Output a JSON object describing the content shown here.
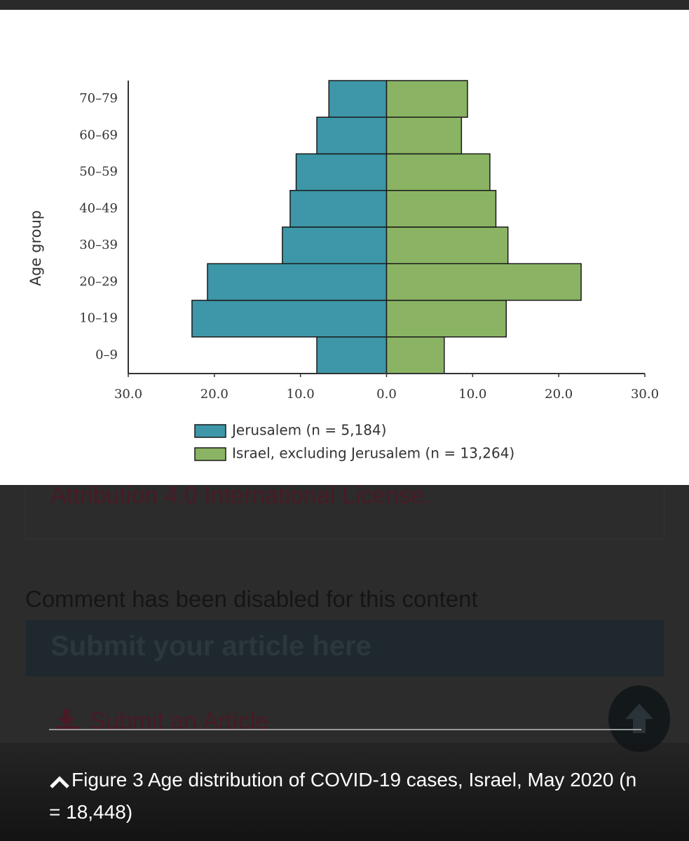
{
  "chart_data": {
    "type": "pyramid",
    "ylabel": "Age group",
    "categories": [
      "0–9",
      "10–19",
      "20–29",
      "30–39",
      "40–49",
      "50–59",
      "60–69",
      "70–79"
    ],
    "series": [
      {
        "name": "Jerusalem (n = 5,184)",
        "color": "#3d97a8",
        "values": [
          -8.1,
          -22.6,
          -20.8,
          -12.1,
          -11.2,
          -10.5,
          -8.1,
          -6.7
        ]
      },
      {
        "name": "Israel, excluding Jerusalem (n = 13,264)",
        "color": "#8ab463",
        "values": [
          6.7,
          13.9,
          22.6,
          14.1,
          12.7,
          12.0,
          8.7,
          9.4
        ]
      }
    ],
    "xlim": [
      -30,
      30
    ],
    "xticks": [
      {
        "value": -30,
        "label": "30.0"
      },
      {
        "value": -20,
        "label": "20.0"
      },
      {
        "value": -10,
        "label": "10.0"
      },
      {
        "value": 0,
        "label": "0.0"
      },
      {
        "value": 10,
        "label": "10.0"
      },
      {
        "value": 20,
        "label": "20.0"
      },
      {
        "value": 30,
        "label": "30.0"
      }
    ],
    "grid": false
  },
  "page": {
    "license": "Attribution 4.0 International License.",
    "comment": "Comment has been disabled for this content",
    "submit_heading": "Submit your article here",
    "submit_link": "Submit an Article",
    "caption": "Figure 3 Age distribution of COVID-19 cases, Israel, May 2020 (n = 18,448)"
  }
}
